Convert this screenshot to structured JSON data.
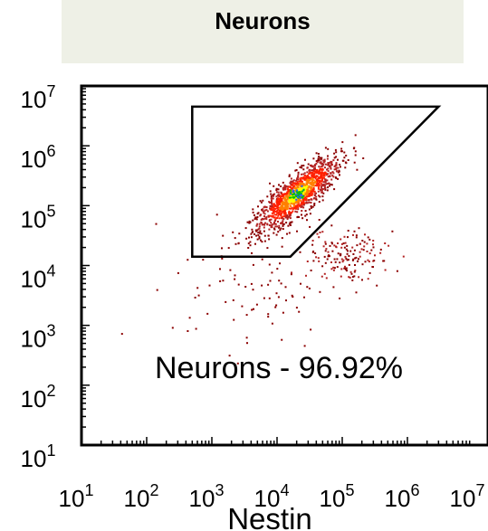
{
  "title": "Neurons",
  "chart_data": {
    "type": "scatter",
    "title": "Neurons",
    "xlabel": "Nestin",
    "ylabel": "",
    "x_scale": "log",
    "y_scale": "log",
    "xlim": [
      10,
      10000000
    ],
    "ylim": [
      10,
      10000000
    ],
    "x_ticks": [
      {
        "base": "10",
        "exp": "1",
        "value": 10
      },
      {
        "base": "10",
        "exp": "2",
        "value": 100
      },
      {
        "base": "10",
        "exp": "3",
        "value": 1000
      },
      {
        "base": "10",
        "exp": "4",
        "value": 10000
      },
      {
        "base": "10",
        "exp": "5",
        "value": 100000
      },
      {
        "base": "10",
        "exp": "6",
        "value": 1000000
      },
      {
        "base": "10",
        "exp": "7",
        "value": 10000000
      }
    ],
    "y_ticks": [
      {
        "base": "10",
        "exp": "1",
        "value": 10
      },
      {
        "base": "10",
        "exp": "2",
        "value": 100
      },
      {
        "base": "10",
        "exp": "3",
        "value": 1000
      },
      {
        "base": "10",
        "exp": "4",
        "value": 10000
      },
      {
        "base": "10",
        "exp": "5",
        "value": 100000
      },
      {
        "base": "10",
        "exp": "6",
        "value": 1000000
      },
      {
        "base": "10",
        "exp": "7",
        "value": 10000000
      }
    ],
    "gate": {
      "label": "Neurons - 96.92%",
      "polygon": [
        [
          500,
          4500000
        ],
        [
          3000000,
          4500000
        ],
        [
          16000,
          14000
        ],
        [
          500,
          14000
        ]
      ]
    },
    "density_center": [
      20000,
      160000
    ],
    "colors": {
      "gate": "#000000",
      "density": [
        "#8b0000",
        "#b22222",
        "#ff2000",
        "#ff8000",
        "#ffff00",
        "#00c000",
        "#2060ff"
      ]
    }
  }
}
